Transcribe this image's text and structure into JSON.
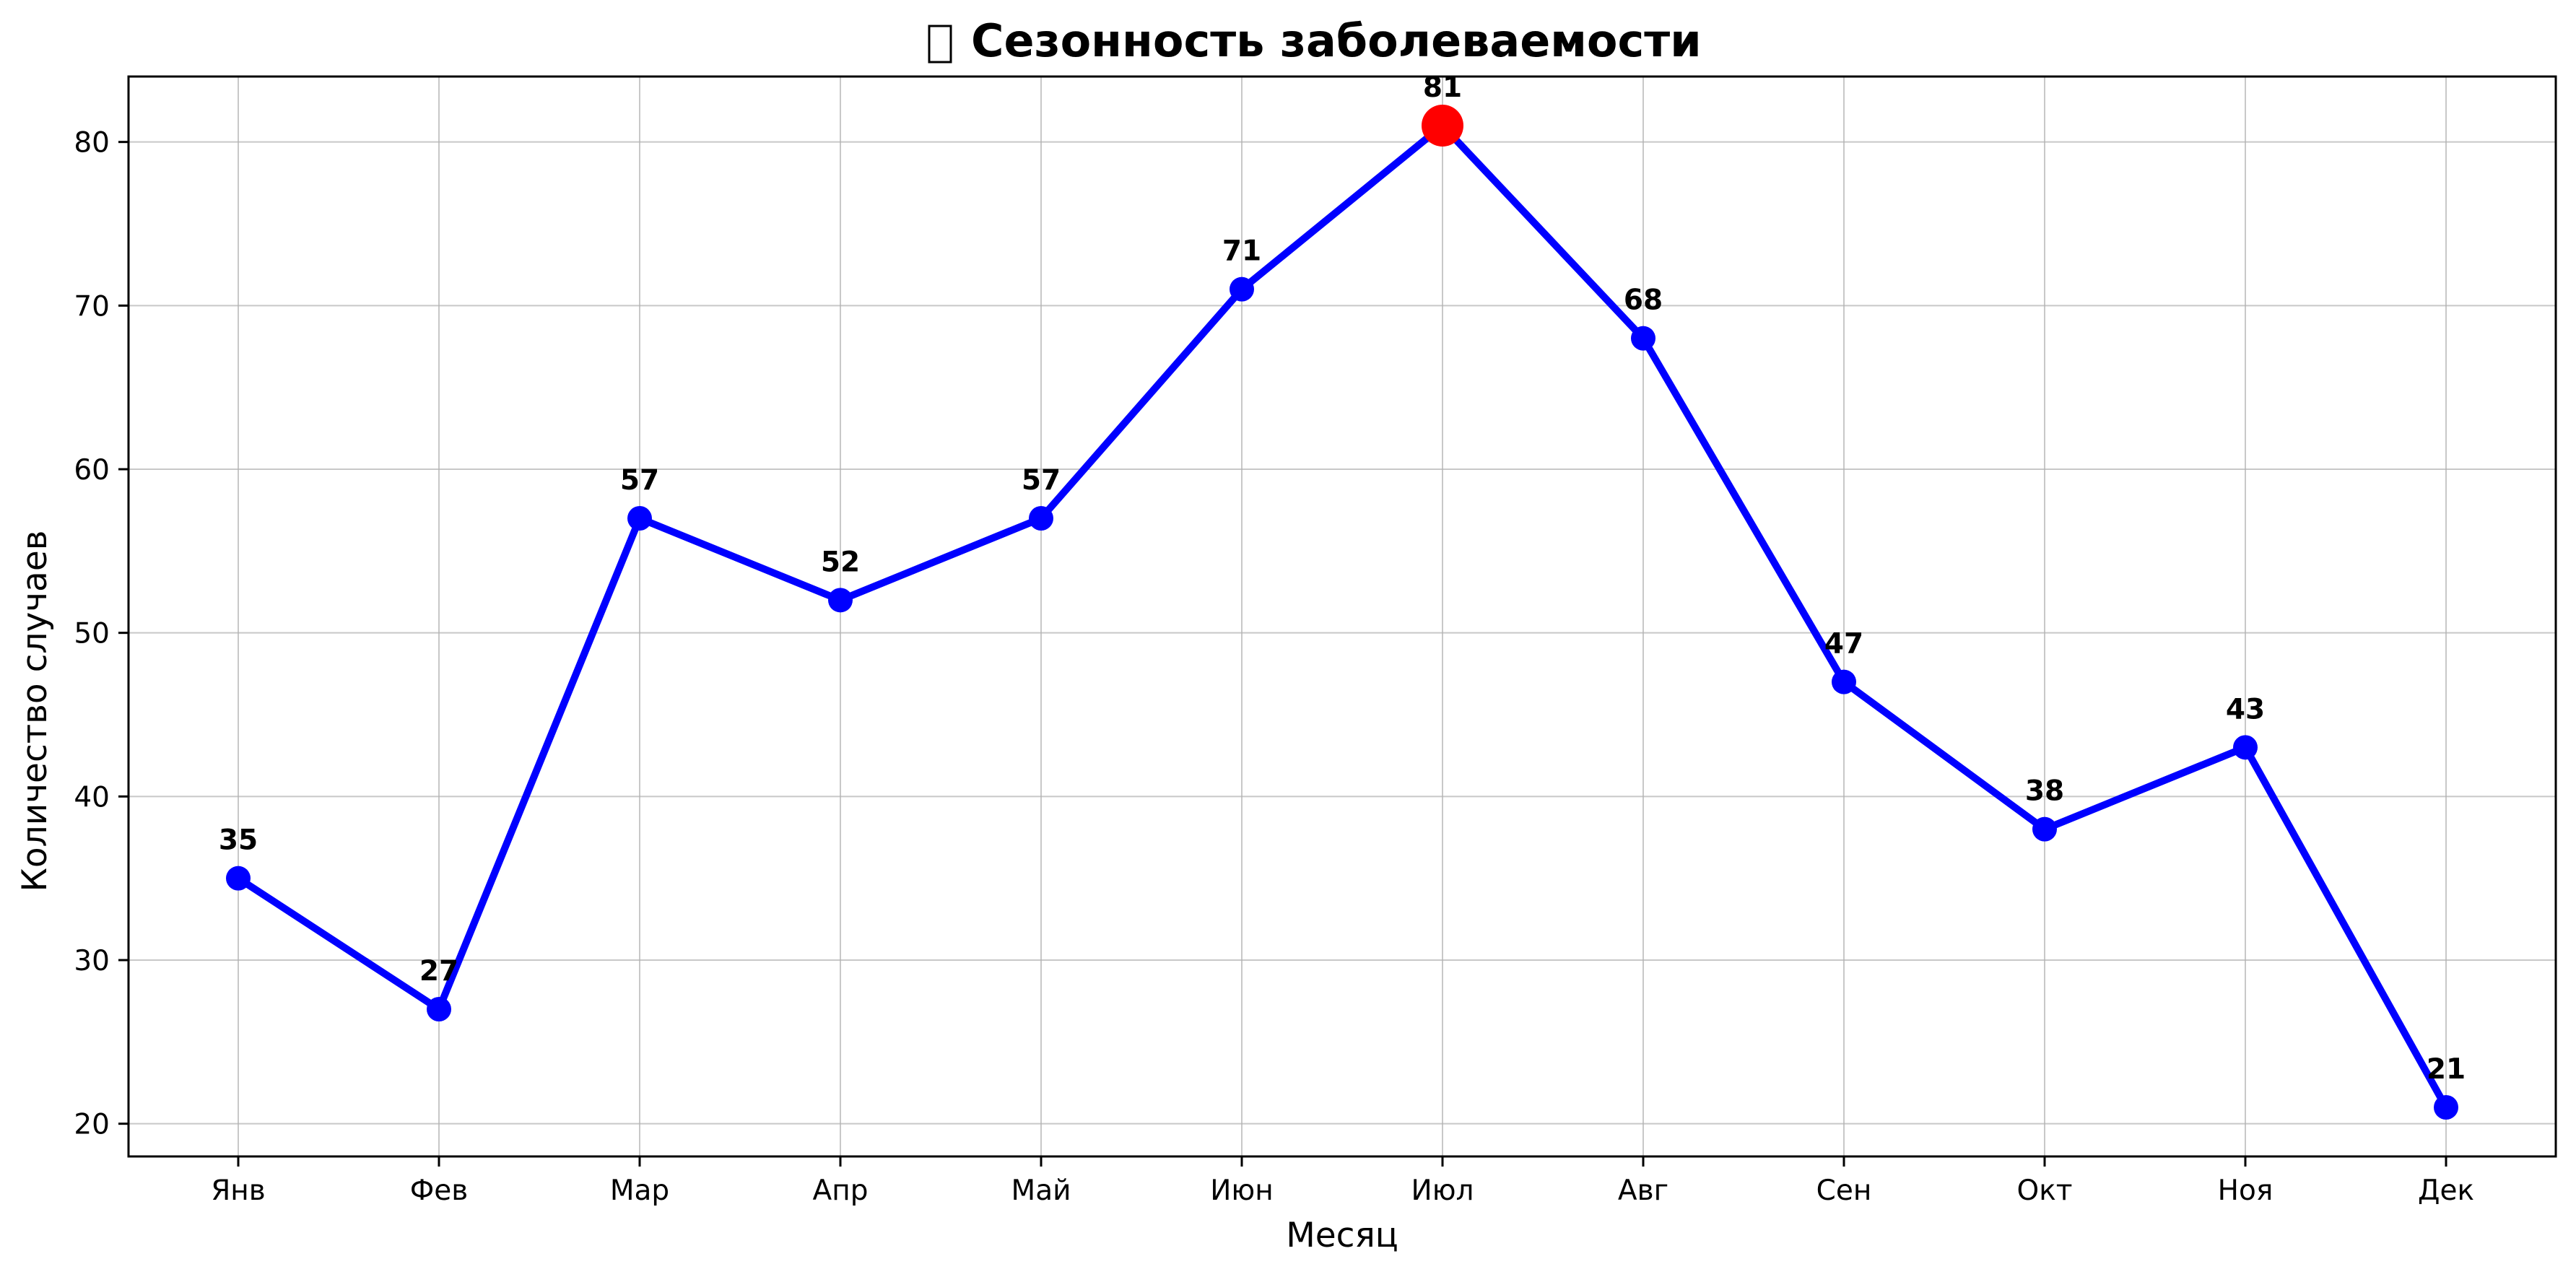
{
  "chart_data": {
    "type": "line",
    "title": "Сезонность заболеваемости",
    "title_icon": "chart-emoji-icon",
    "xlabel": "Месяц",
    "ylabel": "Количество случаев",
    "categories": [
      "Янв",
      "Фев",
      "Мар",
      "Апр",
      "Май",
      "Июн",
      "Июл",
      "Авг",
      "Сен",
      "Окт",
      "Ноя",
      "Дек"
    ],
    "series": [
      {
        "values": [
          35,
          27,
          57,
          52,
          57,
          71,
          81,
          68,
          47,
          38,
          43,
          21
        ],
        "color": "#0000ff"
      }
    ],
    "highlight": {
      "category": "Июл",
      "value": 81,
      "color": "#ff0000"
    },
    "ylim": [
      18,
      84
    ],
    "yticks": [
      20,
      30,
      40,
      50,
      60,
      70,
      80
    ],
    "grid": true,
    "data_labels": true
  }
}
